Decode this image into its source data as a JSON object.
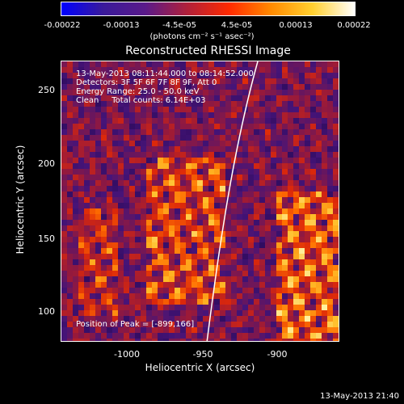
{
  "colorbar": {
    "ticks": [
      "-0.00022",
      "-0.00013",
      "-4.5e-05",
      "4.5e-05",
      "0.00013",
      "0.00022"
    ],
    "units": "(photons cm⁻² s⁻¹ asec⁻²)"
  },
  "title": "Reconstructed RHESSI Image",
  "annotations": {
    "line1": "13-May-2013 08:11:44.000 to 08:14:52.000",
    "line2": "Detectors: 3F 5F 6F 7F 8F 9F, Att 0",
    "line3": "Energy Range: 25.0 - 50.0 keV",
    "line4": "Clean     Total counts: 6.14E+03",
    "peak": "Position of Peak = [-899,166]"
  },
  "axes": {
    "xlabel": "Heliocentric X (arcsec)",
    "ylabel": "Heliocentric Y (arcsec)",
    "xticks": [
      "-1000",
      "-950",
      "-900"
    ],
    "yticks": [
      "250",
      "200",
      "150",
      "100"
    ]
  },
  "timestamp": "13-May-2013 21:40",
  "colors": {
    "colormap": [
      "#0000ff",
      "#3a1a9a",
      "#5a1a8a",
      "#b0203a",
      "#ff2a00",
      "#ff8a00",
      "#ffd030",
      "#ffffff"
    ]
  }
}
